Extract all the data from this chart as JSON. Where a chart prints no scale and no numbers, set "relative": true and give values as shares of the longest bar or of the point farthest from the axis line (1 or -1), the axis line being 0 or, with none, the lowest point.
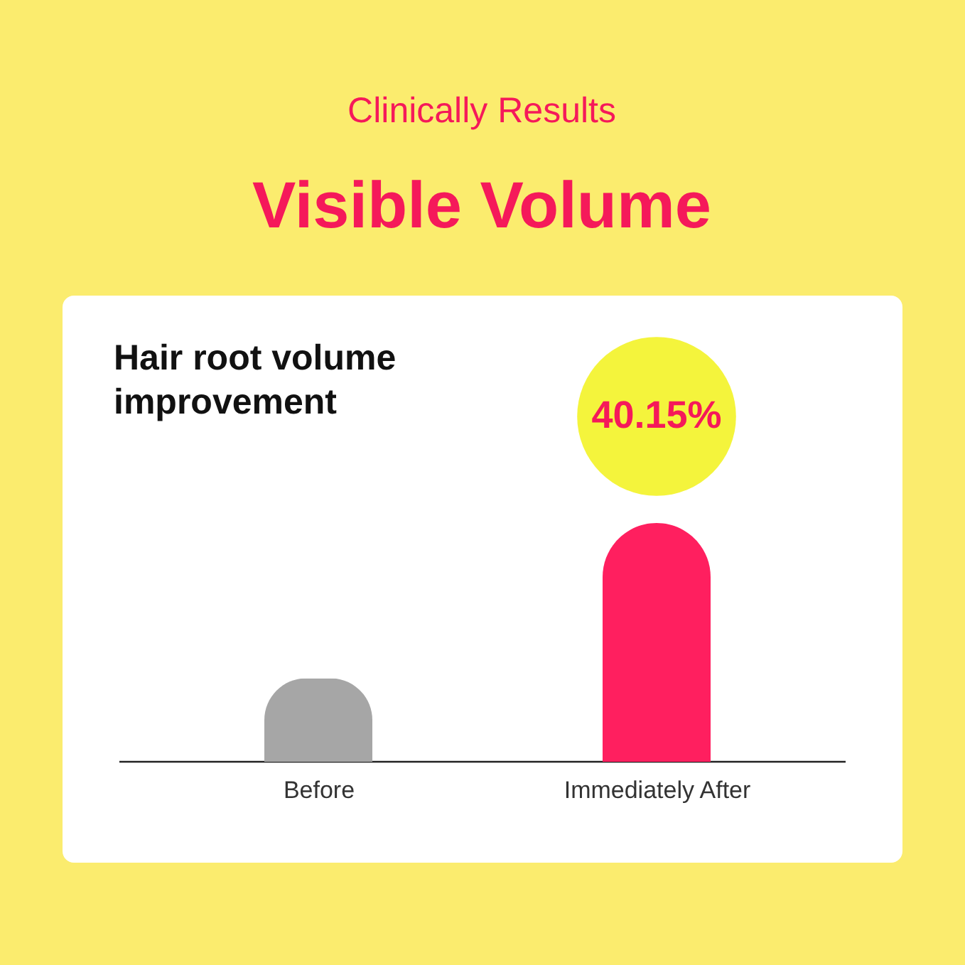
{
  "chart_data": {
    "type": "bar",
    "title": "Visible Volume",
    "subtitle": "Hair root volume improvement",
    "annotations": [
      "Clinically Results",
      "40.15%"
    ],
    "categories": [
      "Before",
      "Immediately After"
    ],
    "values": [
      0.35,
      1
    ],
    "colors": [
      "#a6a6a6",
      "#ff1f5f"
    ],
    "relative": true,
    "grid": false
  }
}
